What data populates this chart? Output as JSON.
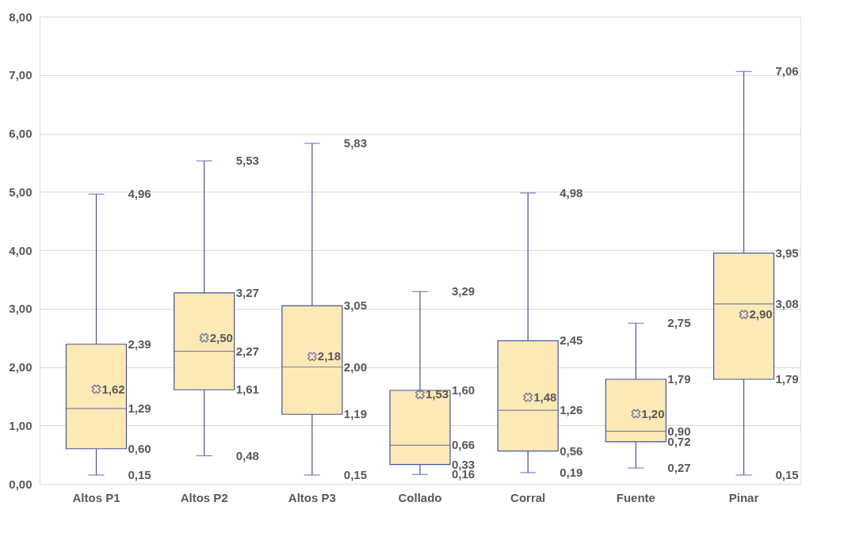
{
  "chart_data": {
    "type": "box",
    "categories": [
      "Altos P1",
      "Altos P2",
      "Altos P3",
      "Collado",
      "Corral",
      "Fuente",
      "Pinar"
    ],
    "series": [
      {
        "color": "#fde9b5",
        "boxes": [
          {
            "low": 0.15,
            "q1": 0.6,
            "median": 1.29,
            "q3": 2.39,
            "high": 4.96,
            "mean": 1.62
          },
          {
            "low": 0.48,
            "q1": 1.61,
            "median": 2.27,
            "q3": 3.27,
            "high": 5.53,
            "mean": 2.5
          },
          {
            "low": 0.15,
            "q1": 1.19,
            "median": 2.0,
            "q3": 3.05,
            "high": 5.83,
            "mean": 2.18
          },
          {
            "low": 0.16,
            "q1": 0.33,
            "median": 0.66,
            "q3": 1.6,
            "high": 3.29,
            "mean": 1.53
          },
          {
            "low": 0.19,
            "q1": 0.56,
            "median": 1.26,
            "q3": 2.45,
            "high": 4.98,
            "mean": 1.48
          },
          {
            "low": 0.27,
            "q1": 0.72,
            "median": 0.9,
            "q3": 1.79,
            "high": 2.75,
            "mean": 1.2
          },
          {
            "low": 0.15,
            "q1": 1.79,
            "median": 3.08,
            "q3": 3.95,
            "high": 7.06,
            "mean": 2.9
          }
        ],
        "value_labels": [
          [
            "0,15",
            "0,60",
            "1,29",
            "2,39",
            "4,96",
            "1,62"
          ],
          [
            "0,48",
            "1,61",
            "2,27",
            "3,27",
            "5,53",
            "2,50"
          ],
          [
            "0,15",
            "1,19",
            "2,00",
            "3,05",
            "5,83",
            "2,18"
          ],
          [
            "0,16",
            "0,33",
            "0,66",
            "1,60",
            "3,29",
            "1,53"
          ],
          [
            "0,19",
            "0,56",
            "1,26",
            "2,45",
            "4,98",
            "1,48"
          ],
          [
            "0,27",
            "0,72",
            "0,90",
            "1,79",
            "2,75",
            "1,20"
          ],
          [
            "0,15",
            "1,79",
            "3,08",
            "3,95",
            "7,06",
            "2,90"
          ]
        ]
      }
    ],
    "ylim": [
      0,
      8
    ],
    "yticks": [
      {
        "value": 0,
        "label": "0,00"
      },
      {
        "value": 1,
        "label": "1,00"
      },
      {
        "value": 2,
        "label": "2,00"
      },
      {
        "value": 3,
        "label": "3,00"
      },
      {
        "value": 4,
        "label": "4,00"
      },
      {
        "value": 5,
        "label": "5,00"
      },
      {
        "value": 6,
        "label": "6,00"
      },
      {
        "value": 7,
        "label": "7,00"
      },
      {
        "value": 8,
        "label": "8,00"
      }
    ],
    "grid": "y",
    "marker": "cross"
  }
}
